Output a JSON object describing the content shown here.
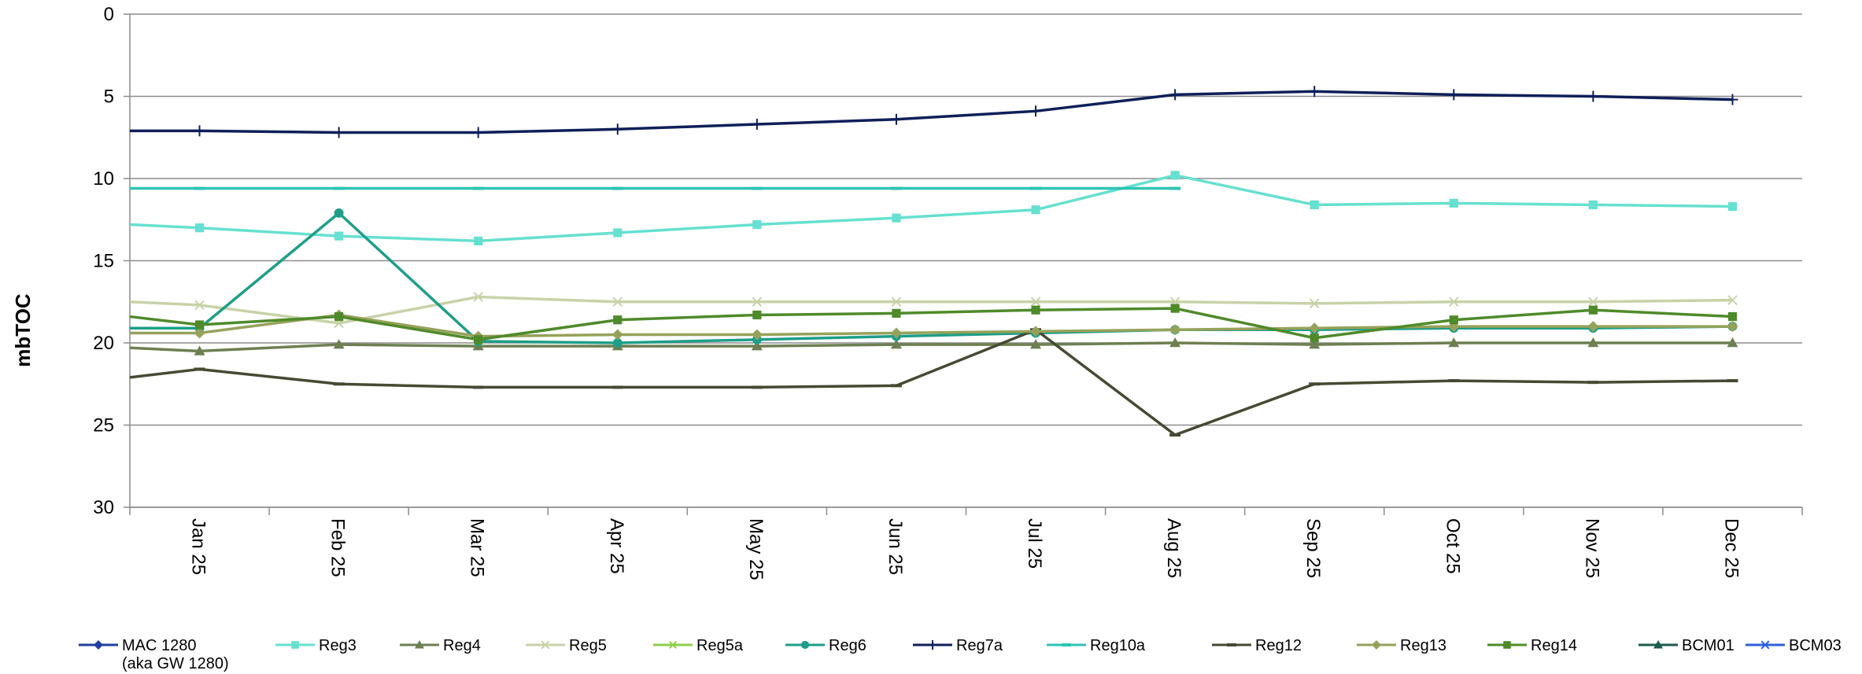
{
  "chart_data": {
    "type": "line",
    "ylabel": "mbTOC",
    "ylim": [
      0,
      30
    ],
    "y_inverted": true,
    "yticks": [
      0,
      5,
      10,
      15,
      20,
      25,
      30
    ],
    "grid": true,
    "legend_position": "bottom",
    "categories": [
      "Jan 25",
      "Feb 25",
      "Mar 25",
      "Apr 25",
      "May 25",
      "Jun 25",
      "Jul 25",
      "Aug 25",
      "Sep 25",
      "Oct 25",
      "Nov 25",
      "Dec 25"
    ],
    "series": [
      {
        "name": "MAC 1280",
        "name_line2": "(aka GW 1280)",
        "color": "#1f3f9f",
        "marker": "diamond",
        "values": [
          null,
          null,
          null,
          null,
          null,
          null,
          null,
          null,
          null,
          null,
          null,
          null
        ]
      },
      {
        "name": "Reg3",
        "color": "#66e0d0",
        "marker": "square",
        "start": 12.8,
        "values": [
          13.0,
          13.5,
          13.8,
          13.3,
          12.8,
          12.4,
          11.9,
          9.8,
          11.6,
          11.5,
          11.6,
          11.7
        ]
      },
      {
        "name": "Reg4",
        "color": "#6e7f52",
        "marker": "triangle",
        "start": 20.3,
        "values": [
          20.5,
          20.1,
          20.2,
          20.2,
          20.2,
          20.1,
          20.1,
          20.0,
          20.1,
          20.0,
          20.0,
          20.0
        ]
      },
      {
        "name": "Reg5",
        "color": "#c8d2a8",
        "marker": "x",
        "start": 17.5,
        "values": [
          17.7,
          18.8,
          17.2,
          17.5,
          17.5,
          17.5,
          17.5,
          17.5,
          17.6,
          17.5,
          17.5,
          17.4
        ]
      },
      {
        "name": "Reg5a",
        "color": "#8ecf4a",
        "marker": "star",
        "values": [
          null,
          null,
          null,
          null,
          null,
          null,
          null,
          null,
          null,
          null,
          null,
          null
        ]
      },
      {
        "name": "Reg6",
        "color": "#1e9e88",
        "marker": "circle",
        "start": 19.1,
        "values": [
          19.1,
          12.1,
          19.9,
          20.0,
          19.8,
          19.6,
          19.4,
          19.2,
          19.2,
          19.1,
          19.1,
          19.0
        ]
      },
      {
        "name": "Reg7a",
        "color": "#0f1f5a",
        "marker": "plus",
        "start": 7.1,
        "values": [
          7.1,
          7.2,
          7.2,
          7.0,
          6.7,
          6.4,
          5.9,
          4.9,
          4.7,
          4.9,
          5.0,
          5.2
        ]
      },
      {
        "name": "Reg10a",
        "color": "#2ec4b4",
        "marker": "dash",
        "start": 10.6,
        "values": [
          10.6,
          10.6,
          10.6,
          10.6,
          10.6,
          10.6,
          10.6,
          10.6,
          null,
          null,
          null,
          null
        ]
      },
      {
        "name": "Reg12",
        "color": "#454a32",
        "marker": "dash",
        "start": 22.1,
        "values": [
          21.6,
          22.5,
          22.7,
          22.7,
          22.7,
          22.6,
          19.2,
          25.6,
          22.5,
          22.3,
          22.4,
          22.3
        ]
      },
      {
        "name": "Reg13",
        "color": "#96a25a",
        "marker": "diamond",
        "start": 19.4,
        "values": [
          19.4,
          18.3,
          19.6,
          19.5,
          19.5,
          19.4,
          19.3,
          19.2,
          19.1,
          19.0,
          19.0,
          19.0
        ]
      },
      {
        "name": "Reg14",
        "color": "#4f8a2a",
        "marker": "square",
        "start": 18.4,
        "values": [
          18.9,
          18.4,
          19.8,
          18.6,
          18.3,
          18.2,
          18.0,
          17.9,
          19.7,
          18.6,
          18.0,
          18.4
        ]
      },
      {
        "name": "BCM01",
        "color": "#1a5c4e",
        "marker": "triangle",
        "values": [
          null,
          null,
          null,
          null,
          null,
          null,
          null,
          null,
          null,
          null,
          null,
          null
        ]
      },
      {
        "name": "BCM03",
        "color": "#2f5fe0",
        "marker": "x",
        "values": [
          null,
          null,
          null,
          null,
          null,
          null,
          null,
          null,
          null,
          null,
          null,
          null
        ]
      }
    ]
  }
}
